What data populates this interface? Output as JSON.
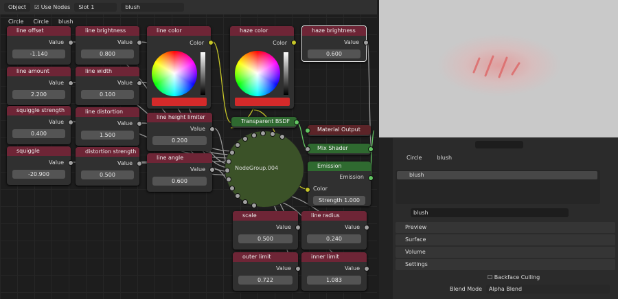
{
  "header": {
    "mode": "Object",
    "use_nodes": "Use Nodes",
    "slot": "Slot 1",
    "material": "blush"
  },
  "breadcrumb": [
    "Circle",
    "Circle",
    "blush"
  ],
  "value_nodes": [
    {
      "title": "line offset",
      "label": "Value",
      "value": "-1.140"
    },
    {
      "title": "line amount",
      "label": "Value",
      "value": "2.200"
    },
    {
      "title": "squiggle strength",
      "label": "Value",
      "value": "0.400"
    },
    {
      "title": "squiggle",
      "label": "Value",
      "value": "-20.900"
    },
    {
      "title": "line brightness",
      "label": "Value",
      "value": "0.800"
    },
    {
      "title": "line width",
      "label": "Value",
      "value": "0.100"
    },
    {
      "title": "line distortion",
      "label": "Value",
      "value": "1.500"
    },
    {
      "title": "distortion strength",
      "label": "Value",
      "value": "0.500"
    },
    {
      "title": "line height limiter",
      "label": "Value",
      "value": "0.200"
    },
    {
      "title": "line angle",
      "label": "Value",
      "value": "0.600"
    },
    {
      "title": "haze brightness",
      "label": "Value",
      "value": "0.600"
    },
    {
      "title": "scale",
      "label": "Value",
      "value": "0.500"
    },
    {
      "title": "line radius",
      "label": "Value",
      "value": "0.240"
    },
    {
      "title": "outer limit",
      "label": "Value",
      "value": "0.722"
    },
    {
      "title": "inner limit",
      "label": "Value",
      "value": "1.083"
    }
  ],
  "color_nodes": [
    {
      "title": "line color",
      "label": "Color"
    },
    {
      "title": "haze color",
      "label": "Color"
    }
  ],
  "shader_nodes": {
    "transparent": "Transparent BSDF",
    "output": "Material Output",
    "mix": "Mix Shader",
    "emission": {
      "title": "Emission",
      "output": "Emission",
      "color": "Color",
      "strength_label": "Strength",
      "strength": "1.000"
    }
  },
  "node_group": "NodeGroup.004",
  "properties": {
    "breadcrumb": [
      "Circle",
      "blush"
    ],
    "slots": [
      "blush"
    ],
    "material": "blush",
    "panels": [
      "Preview",
      "Surface",
      "Volume",
      "Settings"
    ],
    "backface_culling": "Backface Culling",
    "blend_mode_label": "Blend Mode",
    "blend_mode": "Alpha Blend"
  }
}
